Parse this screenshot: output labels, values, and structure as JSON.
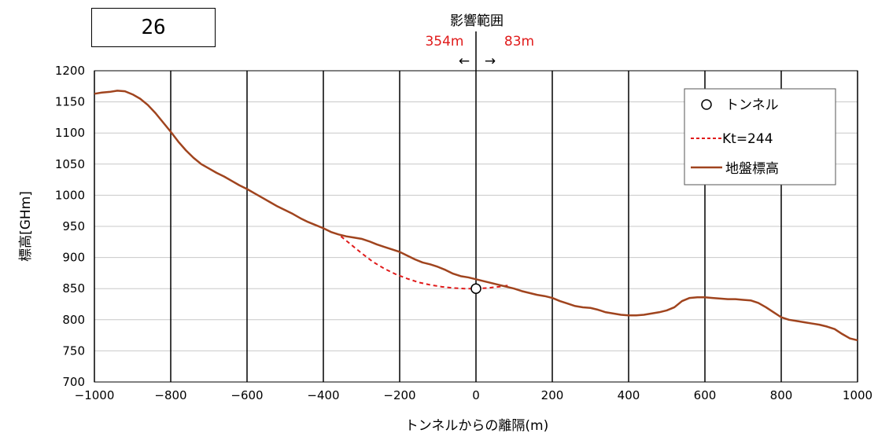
{
  "id_box": {
    "text": "26"
  },
  "annotation": {
    "title": "影響範囲",
    "left_text": "354m",
    "right_text": "83m",
    "arrow_left": "←",
    "arrow_right": "→",
    "left_distance": 354,
    "right_distance": 83
  },
  "colors": {
    "ground": "#a0441e",
    "influence": "#e01a1a",
    "grid": "#000000",
    "annotation_text": "#e01a1a"
  },
  "chart_data": {
    "type": "line",
    "title": "",
    "xlabel": "トンネルからの離隔(m)",
    "ylabel": "標高[GHm]",
    "xlim": [
      -1000,
      1000
    ],
    "ylim": [
      700,
      1200
    ],
    "xticks": [
      -1000,
      -800,
      -600,
      -400,
      -200,
      0,
      200,
      400,
      600,
      800,
      1000
    ],
    "yticks": [
      700,
      750,
      800,
      850,
      900,
      950,
      1000,
      1050,
      1100,
      1150,
      1200
    ],
    "xtick_labels": [
      "−1000",
      "−800",
      "−600",
      "−400",
      "−200",
      "0",
      "200",
      "400",
      "600",
      "800",
      "1000"
    ],
    "ytick_labels": [
      "700",
      "750",
      "800",
      "850",
      "900",
      "950",
      "1000",
      "1050",
      "1100",
      "1150",
      "1200"
    ],
    "grid": "vertical-and-horizontal",
    "legend": {
      "placement": "top-right",
      "entries": [
        {
          "label": "トンネル",
          "style": "marker"
        },
        {
          "label": "Kt=244",
          "style": "dashed"
        },
        {
          "label": "地盤標高",
          "style": "solid"
        }
      ]
    },
    "series": [
      {
        "name": "地盤標高",
        "style": "solid",
        "x": [
          -1000,
          -980,
          -960,
          -940,
          -920,
          -900,
          -880,
          -860,
          -840,
          -820,
          -800,
          -780,
          -760,
          -740,
          -720,
          -700,
          -680,
          -660,
          -640,
          -620,
          -600,
          -580,
          -560,
          -540,
          -520,
          -500,
          -480,
          -460,
          -440,
          -420,
          -400,
          -380,
          -360,
          -340,
          -320,
          -300,
          -280,
          -260,
          -240,
          -220,
          -200,
          -180,
          -160,
          -140,
          -120,
          -100,
          -80,
          -60,
          -40,
          -20,
          0,
          20,
          40,
          60,
          80,
          100,
          120,
          140,
          160,
          180,
          200,
          220,
          240,
          260,
          280,
          300,
          320,
          340,
          360,
          380,
          400,
          420,
          440,
          460,
          480,
          500,
          520,
          540,
          560,
          580,
          600,
          620,
          640,
          660,
          680,
          700,
          720,
          740,
          760,
          780,
          800,
          820,
          840,
          860,
          880,
          900,
          920,
          940,
          960,
          980,
          1000
        ],
        "y": [
          1163,
          1165,
          1166,
          1168,
          1167,
          1162,
          1155,
          1145,
          1132,
          1117,
          1102,
          1086,
          1072,
          1060,
          1050,
          1043,
          1036,
          1030,
          1023,
          1016,
          1010,
          1003,
          996,
          989,
          982,
          976,
          970,
          963,
          957,
          952,
          947,
          941,
          937,
          934,
          932,
          930,
          926,
          921,
          917,
          913,
          909,
          903,
          897,
          892,
          889,
          885,
          880,
          874,
          870,
          868,
          865,
          862,
          859,
          856,
          853,
          850,
          846,
          843,
          840,
          838,
          835,
          830,
          826,
          822,
          820,
          819,
          816,
          812,
          810,
          808,
          807,
          807,
          808,
          810,
          812,
          815,
          820,
          830,
          835,
          836,
          836,
          835,
          834,
          833,
          833,
          832,
          831,
          827,
          820,
          812,
          804,
          800,
          798,
          796,
          794,
          792,
          789,
          785,
          777,
          770,
          767
        ]
      },
      {
        "name": "Kt=244",
        "style": "dashed",
        "x": [
          -354,
          -330,
          -300,
          -270,
          -240,
          -210,
          -180,
          -150,
          -120,
          -90,
          -60,
          -30,
          0,
          30,
          60,
          83
        ],
        "y": [
          934,
          922,
          907,
          893,
          882,
          873,
          866,
          860,
          856,
          853,
          851,
          850,
          850,
          851,
          853,
          855
        ]
      },
      {
        "name": "トンネル",
        "style": "marker",
        "x": [
          0
        ],
        "y": [
          850
        ]
      }
    ]
  }
}
